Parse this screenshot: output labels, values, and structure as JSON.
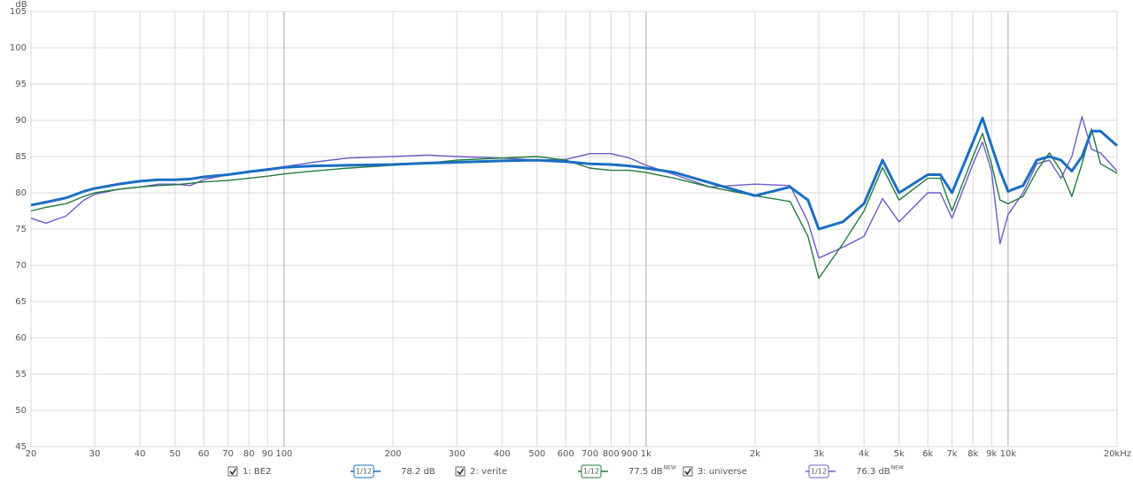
{
  "chart_data": {
    "type": "line",
    "x_scale": "log",
    "y_label": "dB",
    "x": [
      20,
      22,
      25,
      28,
      30,
      35,
      40,
      45,
      50,
      55,
      60,
      70,
      80,
      90,
      100,
      120,
      150,
      200,
      250,
      300,
      400,
      500,
      600,
      700,
      800,
      900,
      1000,
      1200,
      1500,
      2000,
      2500,
      2800,
      3000,
      3500,
      4000,
      4500,
      5000,
      6000,
      6500,
      7000,
      8000,
      8500,
      9000,
      9500,
      10000,
      11000,
      12000,
      13000,
      14000,
      15000,
      16000,
      17000,
      18000,
      20000
    ],
    "series": [
      {
        "name": "1: BE2",
        "color": "#1b6ec2",
        "width": 3,
        "smoothing": "1/12",
        "level": "78.2 dB",
        "values": [
          78.3,
          78.7,
          79.3,
          80.2,
          80.6,
          81.2,
          81.6,
          81.8,
          81.8,
          81.9,
          82.2,
          82.5,
          82.9,
          83.2,
          83.5,
          83.7,
          83.8,
          83.9,
          84.1,
          84.2,
          84.4,
          84.5,
          84.3,
          84.0,
          83.9,
          83.7,
          83.4,
          82.8,
          81.4,
          79.6,
          80.8,
          79.0,
          75.0,
          76.0,
          78.5,
          84.5,
          80.0,
          82.5,
          82.5,
          80.0,
          87.0,
          90.3,
          86.5,
          83.0,
          80.2,
          81.0,
          84.5,
          85.0,
          84.5,
          83.0,
          85.0,
          88.5,
          88.5,
          86.5
        ]
      },
      {
        "name": "2: verite",
        "color": "#217a3c",
        "width": 1.4,
        "smoothing": "1/12",
        "level": "77.5 dB",
        "badge": "NEW",
        "values": [
          77.5,
          78.0,
          78.5,
          79.5,
          80.0,
          80.5,
          80.8,
          81.0,
          81.1,
          81.3,
          81.5,
          81.7,
          82.0,
          82.3,
          82.6,
          83.0,
          83.4,
          83.8,
          84.1,
          84.5,
          84.8,
          85.0,
          84.5,
          83.4,
          83.1,
          83.1,
          82.8,
          82.0,
          80.8,
          79.6,
          78.8,
          74.0,
          68.2,
          73.0,
          77.5,
          83.5,
          79.0,
          82.0,
          82.0,
          77.5,
          85.0,
          88.2,
          84.0,
          79.0,
          78.5,
          79.5,
          83.0,
          85.5,
          83.0,
          79.5,
          84.0,
          88.8,
          84.0,
          82.7
        ]
      },
      {
        "name": "3: universe",
        "color": "#6b5cc8",
        "width": 1.4,
        "smoothing": "1/12",
        "level": "76.3 dB",
        "badge": "NEW",
        "values": [
          76.5,
          75.8,
          76.8,
          79.0,
          79.8,
          80.5,
          80.8,
          81.2,
          81.2,
          81.0,
          81.8,
          82.5,
          83.0,
          83.3,
          83.6,
          84.2,
          84.8,
          85.0,
          85.2,
          85.0,
          84.8,
          84.5,
          84.6,
          85.4,
          85.4,
          84.8,
          83.8,
          82.5,
          80.8,
          81.2,
          81.0,
          76.0,
          71.0,
          72.5,
          74.0,
          79.2,
          76.0,
          80.0,
          80.0,
          76.5,
          84.0,
          87.0,
          83.0,
          73.0,
          77.0,
          80.0,
          84.0,
          84.5,
          82.0,
          85.0,
          90.5,
          86.0,
          85.5,
          83.0
        ]
      }
    ],
    "xlim": [
      20,
      20000
    ],
    "ylim": [
      45,
      105
    ],
    "xticks": [
      20,
      30,
      40,
      50,
      60,
      70,
      80,
      90,
      100,
      200,
      300,
      400,
      500,
      600,
      700,
      800,
      900,
      {
        "value": 1000,
        "label": "1k"
      },
      {
        "value": 2000,
        "label": "2k"
      },
      {
        "value": 3000,
        "label": "3k"
      },
      {
        "value": 4000,
        "label": "4k"
      },
      {
        "value": 5000,
        "label": "5k"
      },
      {
        "value": 6000,
        "label": "6k"
      },
      {
        "value": 7000,
        "label": "7k"
      },
      {
        "value": 8000,
        "label": "8k"
      },
      {
        "value": 9000,
        "label": "9k"
      },
      {
        "value": 10000,
        "label": "10k"
      },
      {
        "value": 20000,
        "label": "20kHz"
      }
    ],
    "yticks": [
      45,
      50,
      55,
      60,
      65,
      70,
      75,
      80,
      85,
      90,
      95,
      100,
      105
    ],
    "grid": true
  }
}
